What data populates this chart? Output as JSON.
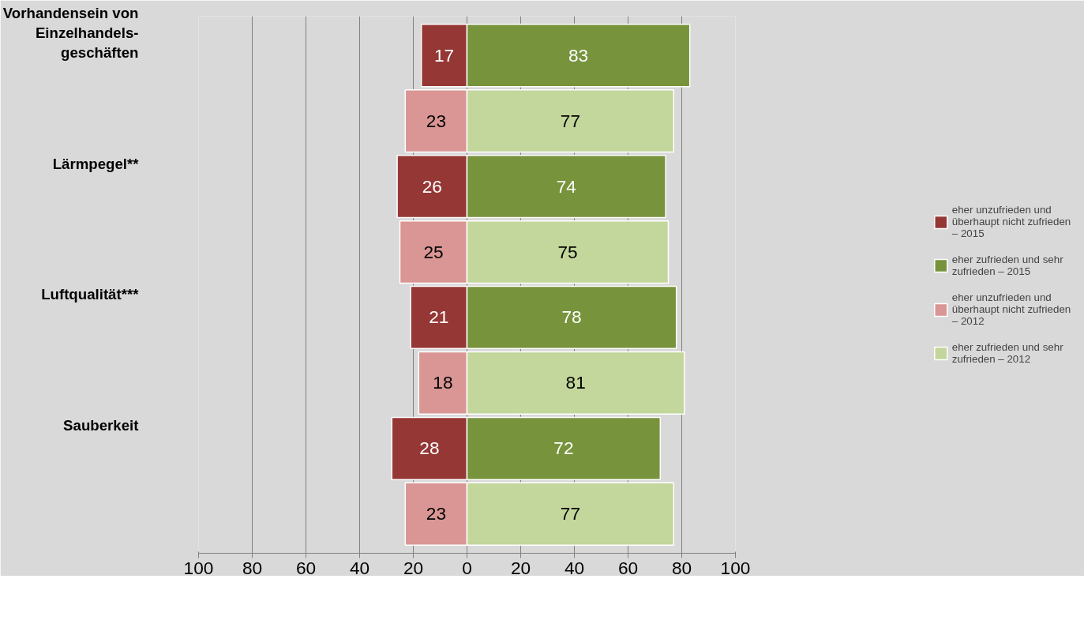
{
  "chart_data": {
    "type": "bar",
    "orientation": "horizontal",
    "categories": [
      "Vorhandensein von\nEinzelhandels-\ngeschäften",
      null,
      "Lärmpegel**",
      null,
      "Luftqualität***",
      null,
      "Sauberkeit",
      null
    ],
    "series": [
      {
        "name": "eher unzufrieden und\nüberhaupt nicht zufrieden\n– 2015",
        "color": "#953735",
        "values": [
          17,
          null,
          26,
          null,
          21,
          null,
          28,
          null
        ],
        "base": [
          -17,
          null,
          -26,
          null,
          -21,
          null,
          -28,
          null
        ],
        "value_labels": [
          "17",
          null,
          "26",
          null,
          "21",
          null,
          "28",
          null
        ]
      },
      {
        "name": "eher zufrieden und sehr\nzufrieden – 2015",
        "color": "#77933c",
        "values": [
          83,
          null,
          74,
          null,
          78,
          null,
          72,
          null
        ],
        "value_labels": [
          "83",
          null,
          "74",
          null,
          "78",
          null,
          "72",
          null
        ]
      },
      {
        "name": "eher unzufrieden und\nüberhaupt nicht zufrieden\n– 2012",
        "color": "#d99694",
        "values": [
          null,
          23,
          null,
          25,
          null,
          18,
          null,
          23
        ],
        "base": [
          null,
          -23,
          null,
          -25,
          null,
          -18,
          null,
          -23
        ],
        "value_labels": [
          null,
          "23",
          null,
          "25",
          null,
          "18",
          null,
          "23"
        ]
      },
      {
        "name": "eher zufrieden und sehr\nzufrieden – 2012",
        "color": "#c3d69b",
        "values": [
          null,
          77,
          null,
          75,
          null,
          81,
          null,
          77
        ],
        "value_labels": [
          null,
          "77",
          null,
          "75",
          null,
          "81",
          null,
          "77"
        ]
      }
    ],
    "xlim": [
      -100,
      100
    ],
    "xticks": [
      {
        "value": -100,
        "label": "100"
      },
      {
        "value": -80,
        "label": "80"
      },
      {
        "value": -60,
        "label": "60"
      },
      {
        "value": -40,
        "label": "40"
      },
      {
        "value": -20,
        "label": "20"
      },
      0,
      20,
      40,
      60,
      80,
      100
    ],
    "grid": "x",
    "legend": "right"
  }
}
